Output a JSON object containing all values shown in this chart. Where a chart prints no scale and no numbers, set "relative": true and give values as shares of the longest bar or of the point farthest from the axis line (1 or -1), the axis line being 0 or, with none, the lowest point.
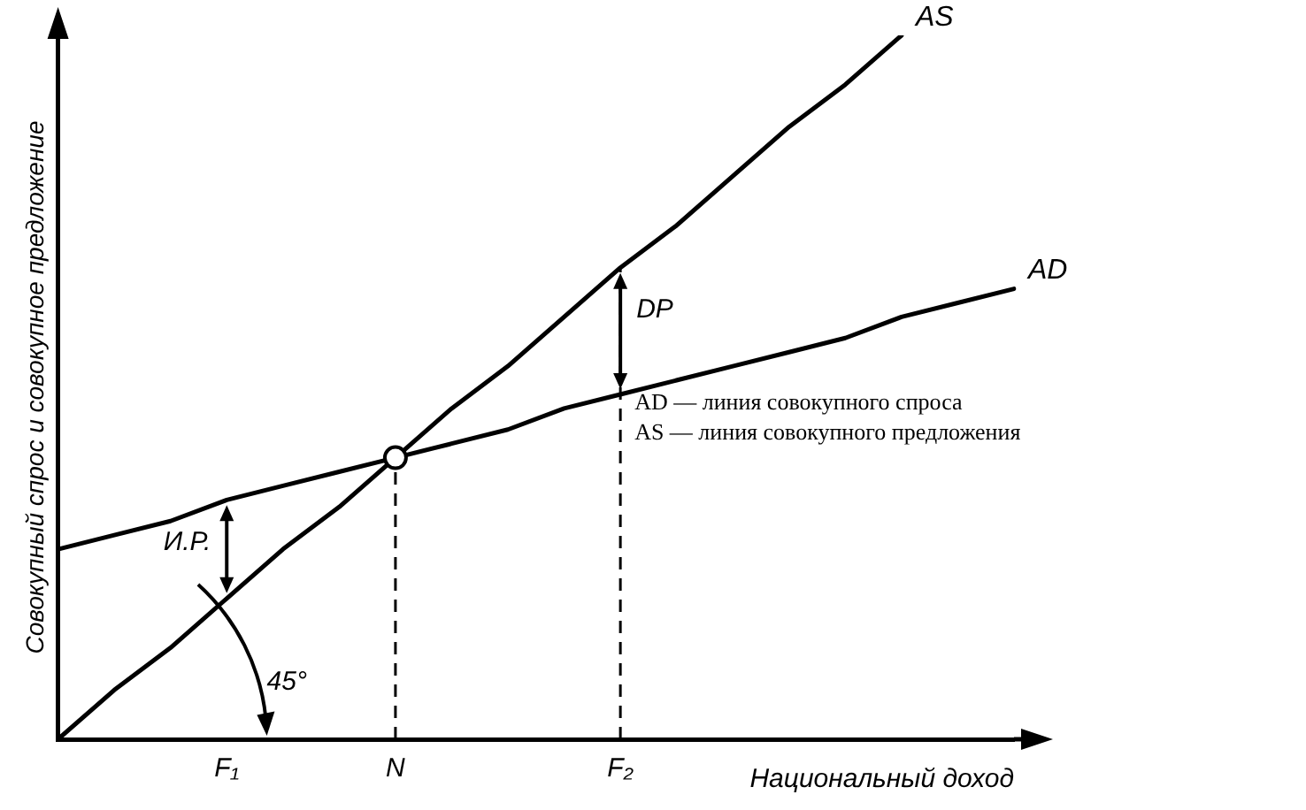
{
  "chart_data": {
    "type": "line",
    "relative": true,
    "xlabel": "Национальный доход",
    "ylabel": "Совокупный спрос и совокупное предложение",
    "categories": [
      null,
      null,
      null,
      "F₁",
      null,
      null,
      "N",
      null,
      null,
      null,
      "F₂",
      null,
      null,
      null,
      null,
      null,
      null,
      null
    ],
    "series": [
      {
        "name": "AS",
        "color": "#000000",
        "values": [
          0,
          0.07,
          0.13,
          0.2,
          0.27,
          0.33,
          0.4,
          0.47,
          0.53,
          0.6,
          0.67,
          0.73,
          0.8,
          0.87,
          0.93,
          1,
          null,
          null
        ]
      },
      {
        "name": "AD",
        "color": "#000000",
        "values": [
          0.27,
          0.29,
          0.31,
          0.34,
          0.36,
          0.38,
          0.4,
          0.42,
          0.44,
          0.47,
          0.49,
          0.51,
          0.53,
          0.55,
          0.57,
          0.6,
          0.62,
          0.64
        ]
      }
    ],
    "ref_lines": [
      {
        "axis": "x",
        "value": "N",
        "line_style": "dashed"
      },
      {
        "axis": "x",
        "value": "F₂",
        "line_style": "dashed"
      }
    ],
    "annotations": [
      {
        "text": "И.Р.",
        "x": "F₁",
        "y": 0.34
      },
      {
        "text": "DP",
        "x": "F₂",
        "y": 0.67
      },
      "45°",
      "AD — линия совокупного спроса",
      "AS — линия совокупного предложения"
    ],
    "grid": false
  }
}
